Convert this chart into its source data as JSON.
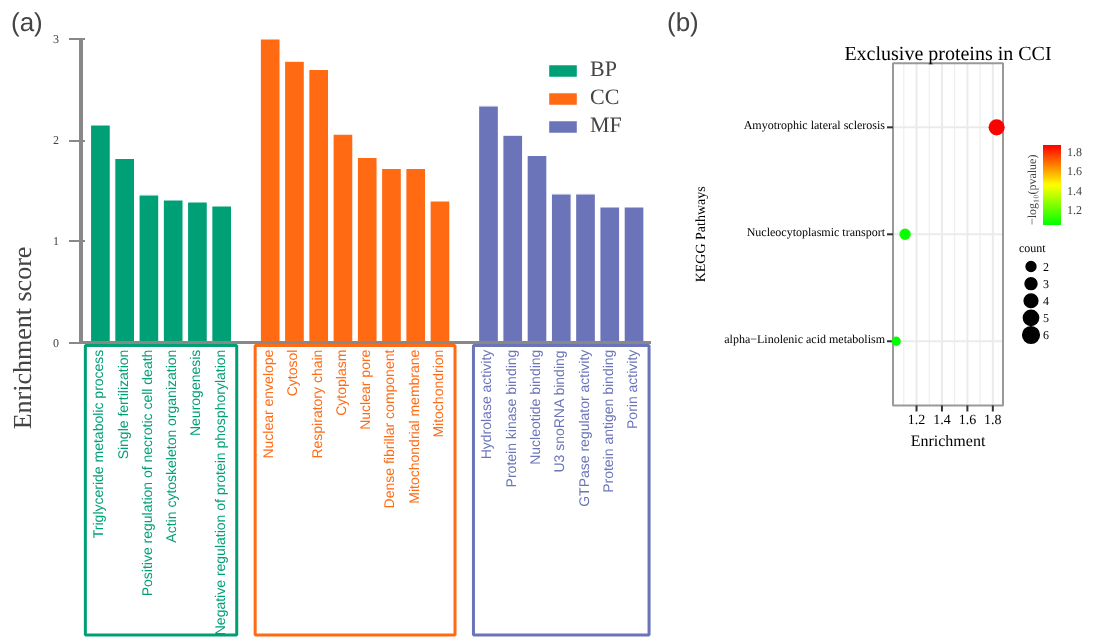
{
  "chart_data": [
    {
      "type": "bar",
      "annotations": [
        "(a)"
      ],
      "ylabel": "Enrichment score",
      "categories": [
        "Triglyceride metabolic process",
        "Single fertilization",
        "Positive regulation of necrotic cell death",
        "Actin cytoskeleton organization",
        "Neurogenesis",
        "Negative regulation of protein phosphorylation",
        "Nuclear envelope",
        "Cytosol",
        "Respiratory chain",
        "Cytoplasm",
        "Nuclear pore",
        "Dense fibrillar component",
        "Mitochondrial membrane",
        "Mitochondrion",
        "Hydrolase activity",
        "Protein kinase binding",
        "Nucleotide binding",
        "U3 snoRNA binding",
        "GTPase regulator activity",
        "Protein antigen binding",
        "Porin activity"
      ],
      "series": [
        {
          "name": "BP",
          "color": "#00a077",
          "values": [
            2.15,
            1.82,
            1.46,
            1.41,
            1.39,
            1.35,
            null,
            null,
            null,
            null,
            null,
            null,
            null,
            null,
            null,
            null,
            null,
            null,
            null,
            null,
            null
          ]
        },
        {
          "name": "CC",
          "color": "#ff6a13",
          "values": [
            null,
            null,
            null,
            null,
            null,
            null,
            3.0,
            2.78,
            2.7,
            2.06,
            1.83,
            1.72,
            1.72,
            1.4,
            null,
            null,
            null,
            null,
            null,
            null,
            null
          ]
        },
        {
          "name": "MF",
          "color": "#6b74b8",
          "values": [
            null,
            null,
            null,
            null,
            null,
            null,
            null,
            null,
            null,
            null,
            null,
            null,
            null,
            null,
            2.34,
            2.05,
            1.85,
            1.47,
            1.47,
            1.34,
            1.34
          ]
        }
      ],
      "ylim": [
        0,
        3
      ],
      "yticks": [
        0,
        1,
        2,
        3
      ],
      "legend": "top right",
      "grid": false
    },
    {
      "type": "bubble",
      "orientation": "horizontal",
      "title": "Exclusive proteins in CCI",
      "annotations": [
        "(b)"
      ],
      "xlabel": "Enrichment",
      "ylabel": "KEGG Pathways",
      "clabel": "−log₁₀(pvalue)",
      "categories": [
        "Amyotrophic lateral sclerosis",
        "Nucleocytoplasmic transport",
        "alpha−Linolenic acid metabolism"
      ],
      "values": [
        1.83,
        1.11,
        1.04
      ],
      "sizes": [
        6,
        3,
        2
      ],
      "cvalues": [
        1.87,
        1.07,
        1.05
      ],
      "size_legend": [
        2,
        3,
        4,
        5,
        6
      ],
      "legend_title": "count",
      "clim": [
        1.05,
        1.87
      ],
      "cticks": [
        1.2,
        1.4,
        1.6,
        1.8
      ],
      "xlim": [
        1.015,
        1.88
      ],
      "xticks": [
        1.2,
        1.4,
        1.6,
        1.8
      ],
      "grid": true
    }
  ]
}
